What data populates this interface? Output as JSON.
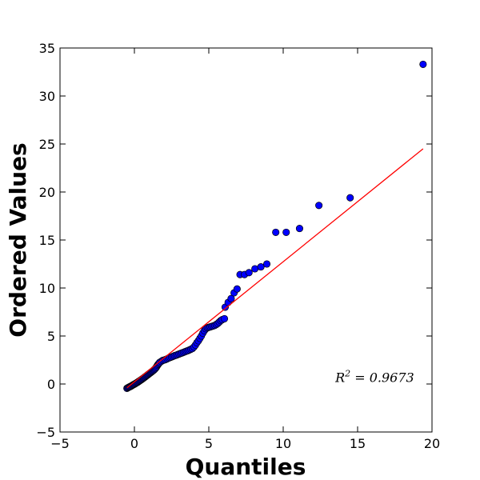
{
  "chart_data": {
    "type": "scatter",
    "title": "",
    "xlabel": "Quantiles",
    "ylabel": "Ordered Values",
    "xlim": [
      -5,
      20
    ],
    "ylim": [
      -5,
      35
    ],
    "x_ticks": [
      -5,
      0,
      5,
      10,
      15,
      20
    ],
    "y_ticks": [
      -5,
      0,
      5,
      10,
      15,
      20,
      25,
      30,
      35
    ],
    "x_tick_labels": [
      "−5",
      "0",
      "5",
      "10",
      "15",
      "20"
    ],
    "y_tick_labels": [
      "−5",
      "0",
      "5",
      "10",
      "15",
      "20",
      "25",
      "30",
      "35"
    ],
    "grid": false,
    "annotation": {
      "r_symbol": "R",
      "exponent": "2",
      "text": " = 0.9673",
      "x": 13.5,
      "y": 0.2
    },
    "point_color": "#0000ff",
    "fit_line_color": "#ff0000",
    "fit_line": {
      "x": [
        -0.5,
        19.4
      ],
      "y": [
        -0.4,
        24.5
      ]
    },
    "points": [
      [
        -0.5,
        -0.45
      ],
      [
        -0.45,
        -0.4
      ],
      [
        -0.4,
        -0.36
      ],
      [
        -0.35,
        -0.32
      ],
      [
        -0.3,
        -0.28
      ],
      [
        -0.25,
        -0.24
      ],
      [
        -0.2,
        -0.2
      ],
      [
        -0.15,
        -0.15
      ],
      [
        -0.1,
        -0.1
      ],
      [
        -0.05,
        -0.06
      ],
      [
        0,
        -0.02
      ],
      [
        0.05,
        0.03
      ],
      [
        0.1,
        0.08
      ],
      [
        0.15,
        0.12
      ],
      [
        0.2,
        0.17
      ],
      [
        0.25,
        0.22
      ],
      [
        0.3,
        0.28
      ],
      [
        0.35,
        0.33
      ],
      [
        0.4,
        0.38
      ],
      [
        0.45,
        0.43
      ],
      [
        0.5,
        0.49
      ],
      [
        0.55,
        0.55
      ],
      [
        0.6,
        0.6
      ],
      [
        0.65,
        0.66
      ],
      [
        0.7,
        0.72
      ],
      [
        0.75,
        0.78
      ],
      [
        0.8,
        0.84
      ],
      [
        0.85,
        0.9
      ],
      [
        0.9,
        0.96
      ],
      [
        0.95,
        1.02
      ],
      [
        1.0,
        1.08
      ],
      [
        1.05,
        1.14
      ],
      [
        1.1,
        1.2
      ],
      [
        1.15,
        1.26
      ],
      [
        1.2,
        1.32
      ],
      [
        1.25,
        1.38
      ],
      [
        1.3,
        1.45
      ],
      [
        1.35,
        1.52
      ],
      [
        1.4,
        1.6
      ],
      [
        1.45,
        1.7
      ],
      [
        1.5,
        1.82
      ],
      [
        1.55,
        1.95
      ],
      [
        1.6,
        2.05
      ],
      [
        1.65,
        2.15
      ],
      [
        1.7,
        2.25
      ],
      [
        1.8,
        2.35
      ],
      [
        1.9,
        2.45
      ],
      [
        2.0,
        2.5
      ],
      [
        2.1,
        2.55
      ],
      [
        2.2,
        2.62
      ],
      [
        2.3,
        2.7
      ],
      [
        2.4,
        2.76
      ],
      [
        2.5,
        2.82
      ],
      [
        2.6,
        2.88
      ],
      [
        2.7,
        2.95
      ],
      [
        2.8,
        3.0
      ],
      [
        2.9,
        3.06
      ],
      [
        3.0,
        3.12
      ],
      [
        3.1,
        3.18
      ],
      [
        3.2,
        3.24
      ],
      [
        3.3,
        3.3
      ],
      [
        3.4,
        3.36
      ],
      [
        3.5,
        3.42
      ],
      [
        3.6,
        3.48
      ],
      [
        3.7,
        3.55
      ],
      [
        3.8,
        3.62
      ],
      [
        3.9,
        3.7
      ],
      [
        4.0,
        3.85
      ],
      [
        4.1,
        4.05
      ],
      [
        4.2,
        4.3
      ],
      [
        4.3,
        4.5
      ],
      [
        4.4,
        4.75
      ],
      [
        4.5,
        5.0
      ],
      [
        4.6,
        5.3
      ],
      [
        4.7,
        5.55
      ],
      [
        4.8,
        5.75
      ],
      [
        4.9,
        5.85
      ],
      [
        5.0,
        5.9
      ],
      [
        5.1,
        5.95
      ],
      [
        5.2,
        6.0
      ],
      [
        5.3,
        6.05
      ],
      [
        5.4,
        6.1
      ],
      [
        5.5,
        6.2
      ],
      [
        5.6,
        6.3
      ],
      [
        5.7,
        6.45
      ],
      [
        5.8,
        6.6
      ],
      [
        5.9,
        6.7
      ],
      [
        6.05,
        6.8
      ],
      [
        6.1,
        8.0
      ],
      [
        6.3,
        8.5
      ],
      [
        6.5,
        8.9
      ],
      [
        6.7,
        9.5
      ],
      [
        6.9,
        9.9
      ],
      [
        7.1,
        11.4
      ],
      [
        7.4,
        11.4
      ],
      [
        7.7,
        11.6
      ],
      [
        8.1,
        12.0
      ],
      [
        8.5,
        12.2
      ],
      [
        8.9,
        12.5
      ],
      [
        9.5,
        15.8
      ],
      [
        10.2,
        15.8
      ],
      [
        11.1,
        16.2
      ],
      [
        12.4,
        18.6
      ],
      [
        14.5,
        19.4
      ],
      [
        19.4,
        33.3
      ]
    ]
  }
}
